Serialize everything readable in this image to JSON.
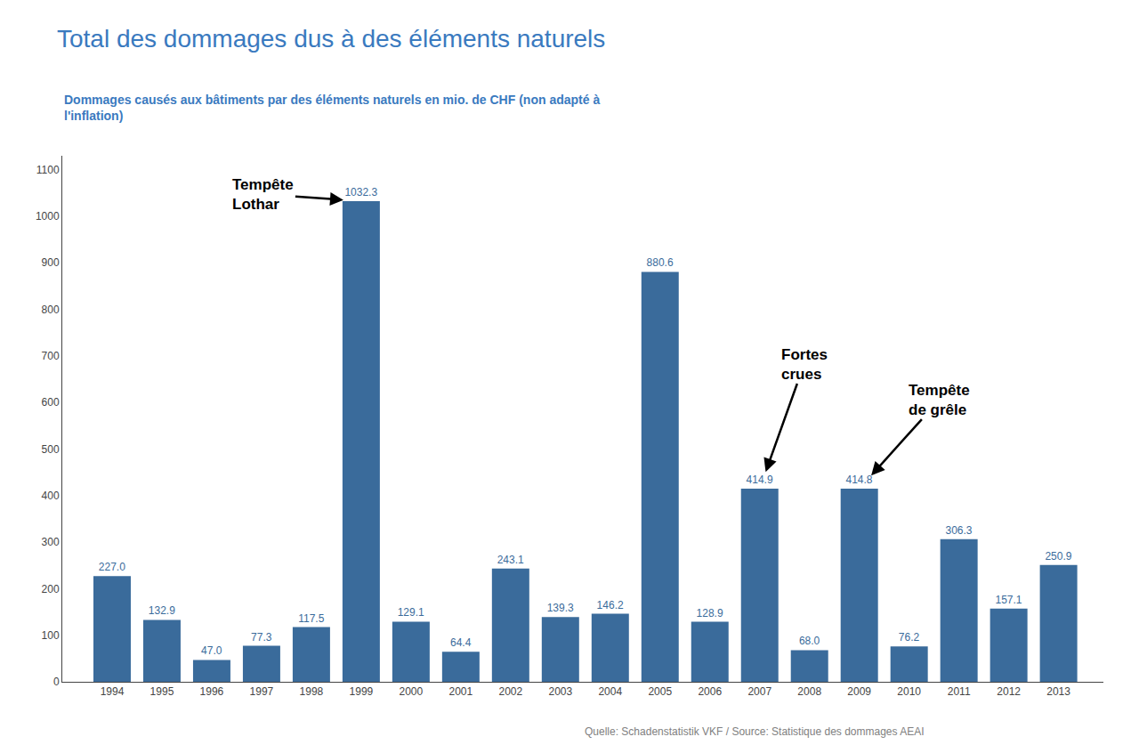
{
  "chart_data": {
    "type": "bar",
    "title": "Total des dommages dus à des éléments naturels",
    "subtitle": "Dommages causés aux bâtiments par des éléments naturels en mio. de CHF (non adapté à\nl'inflation)",
    "source": "Quelle: Schadenstatistik VKF / Source: Statistique des dommages AEAI",
    "x": [
      1994,
      1995,
      1996,
      1997,
      1998,
      1999,
      2000,
      2001,
      2002,
      2003,
      2004,
      2005,
      2006,
      2007,
      2008,
      2009,
      2010,
      2011,
      2012,
      2013
    ],
    "values": [
      227.0,
      132.9,
      47.0,
      77.3,
      117.5,
      1032.3,
      129.1,
      64.4,
      243.1,
      139.3,
      146.2,
      880.6,
      128.9,
      414.9,
      68.0,
      414.8,
      76.2,
      306.3,
      157.1,
      250.9
    ],
    "value_labels": [
      "227.0",
      "132.9",
      "47.0",
      "77.3",
      "117.5",
      "1032.3",
      "129.1",
      "64.4",
      "243.1",
      "139.3",
      "146.2",
      "880.6",
      "128.9",
      "414.9",
      "68.0",
      "414.8",
      "76.2",
      "306.3",
      "157.1",
      "250.9"
    ],
    "data_labels": true,
    "color": "#3a6b9b",
    "xlim": [
      1993.0,
      2013.9
    ],
    "xticks": [
      1994,
      1995,
      1996,
      1997,
      1998,
      1999,
      2000,
      2001,
      2002,
      2003,
      2004,
      2005,
      2006,
      2007,
      2008,
      2009,
      2010,
      2011,
      2012,
      2013
    ],
    "ylim": [
      0,
      1130
    ],
    "yticks": [
      0,
      100,
      200,
      300,
      400,
      500,
      600,
      700,
      800,
      900,
      1000,
      1100
    ],
    "grid": false,
    "annotations": [
      {
        "text": "Tempête\nLothar",
        "x": 1999
      },
      {
        "text": "Fortes\ncrues",
        "x": 2007
      },
      {
        "text": "Tempête\nde grêle",
        "x": 2009
      }
    ]
  }
}
